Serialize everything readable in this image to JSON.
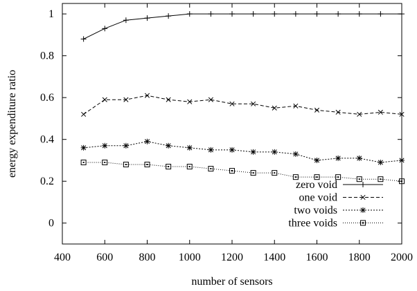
{
  "chart_data": {
    "type": "line",
    "title": "",
    "xlabel": "number of sensors",
    "ylabel": "energy expenditure ratio",
    "xlim": [
      400,
      2000
    ],
    "ylim": [
      -0.1,
      1.05
    ],
    "xticks": [
      400,
      600,
      800,
      1000,
      1200,
      1400,
      1600,
      1800,
      2000
    ],
    "yticks": [
      0,
      0.2,
      0.4,
      0.6,
      0.8,
      1
    ],
    "ytick_labels": [
      "0",
      "0.2",
      "0.4",
      "0.6",
      "0.8",
      "1"
    ],
    "grid": false,
    "legend_position": "bottom-right",
    "x": [
      500,
      600,
      700,
      800,
      900,
      1000,
      1100,
      1200,
      1300,
      1400,
      1500,
      1600,
      1700,
      1800,
      1900,
      2000
    ],
    "series": [
      {
        "name": "zero void",
        "marker": "plus",
        "dash": "solid",
        "values": [
          0.88,
          0.93,
          0.97,
          0.98,
          0.99,
          1.0,
          1.0,
          1.0,
          1.0,
          1.0,
          1.0,
          1.0,
          1.0,
          1.0,
          1.0,
          1.0
        ]
      },
      {
        "name": "one void",
        "marker": "cross",
        "dash": "dashed",
        "values": [
          0.52,
          0.59,
          0.59,
          0.61,
          0.59,
          0.58,
          0.59,
          0.57,
          0.57,
          0.55,
          0.56,
          0.54,
          0.53,
          0.52,
          0.53,
          0.52
        ]
      },
      {
        "name": "two voids",
        "marker": "star",
        "dash": "dotted",
        "values": [
          0.36,
          0.37,
          0.37,
          0.39,
          0.37,
          0.36,
          0.35,
          0.35,
          0.34,
          0.34,
          0.33,
          0.3,
          0.31,
          0.31,
          0.29,
          0.3
        ]
      },
      {
        "name": "three voids",
        "marker": "square",
        "dash": "fine-dotted",
        "values": [
          0.29,
          0.29,
          0.28,
          0.28,
          0.27,
          0.27,
          0.26,
          0.25,
          0.24,
          0.24,
          0.22,
          0.22,
          0.22,
          0.21,
          0.21,
          0.2
        ]
      }
    ],
    "line_color": "#000000"
  }
}
